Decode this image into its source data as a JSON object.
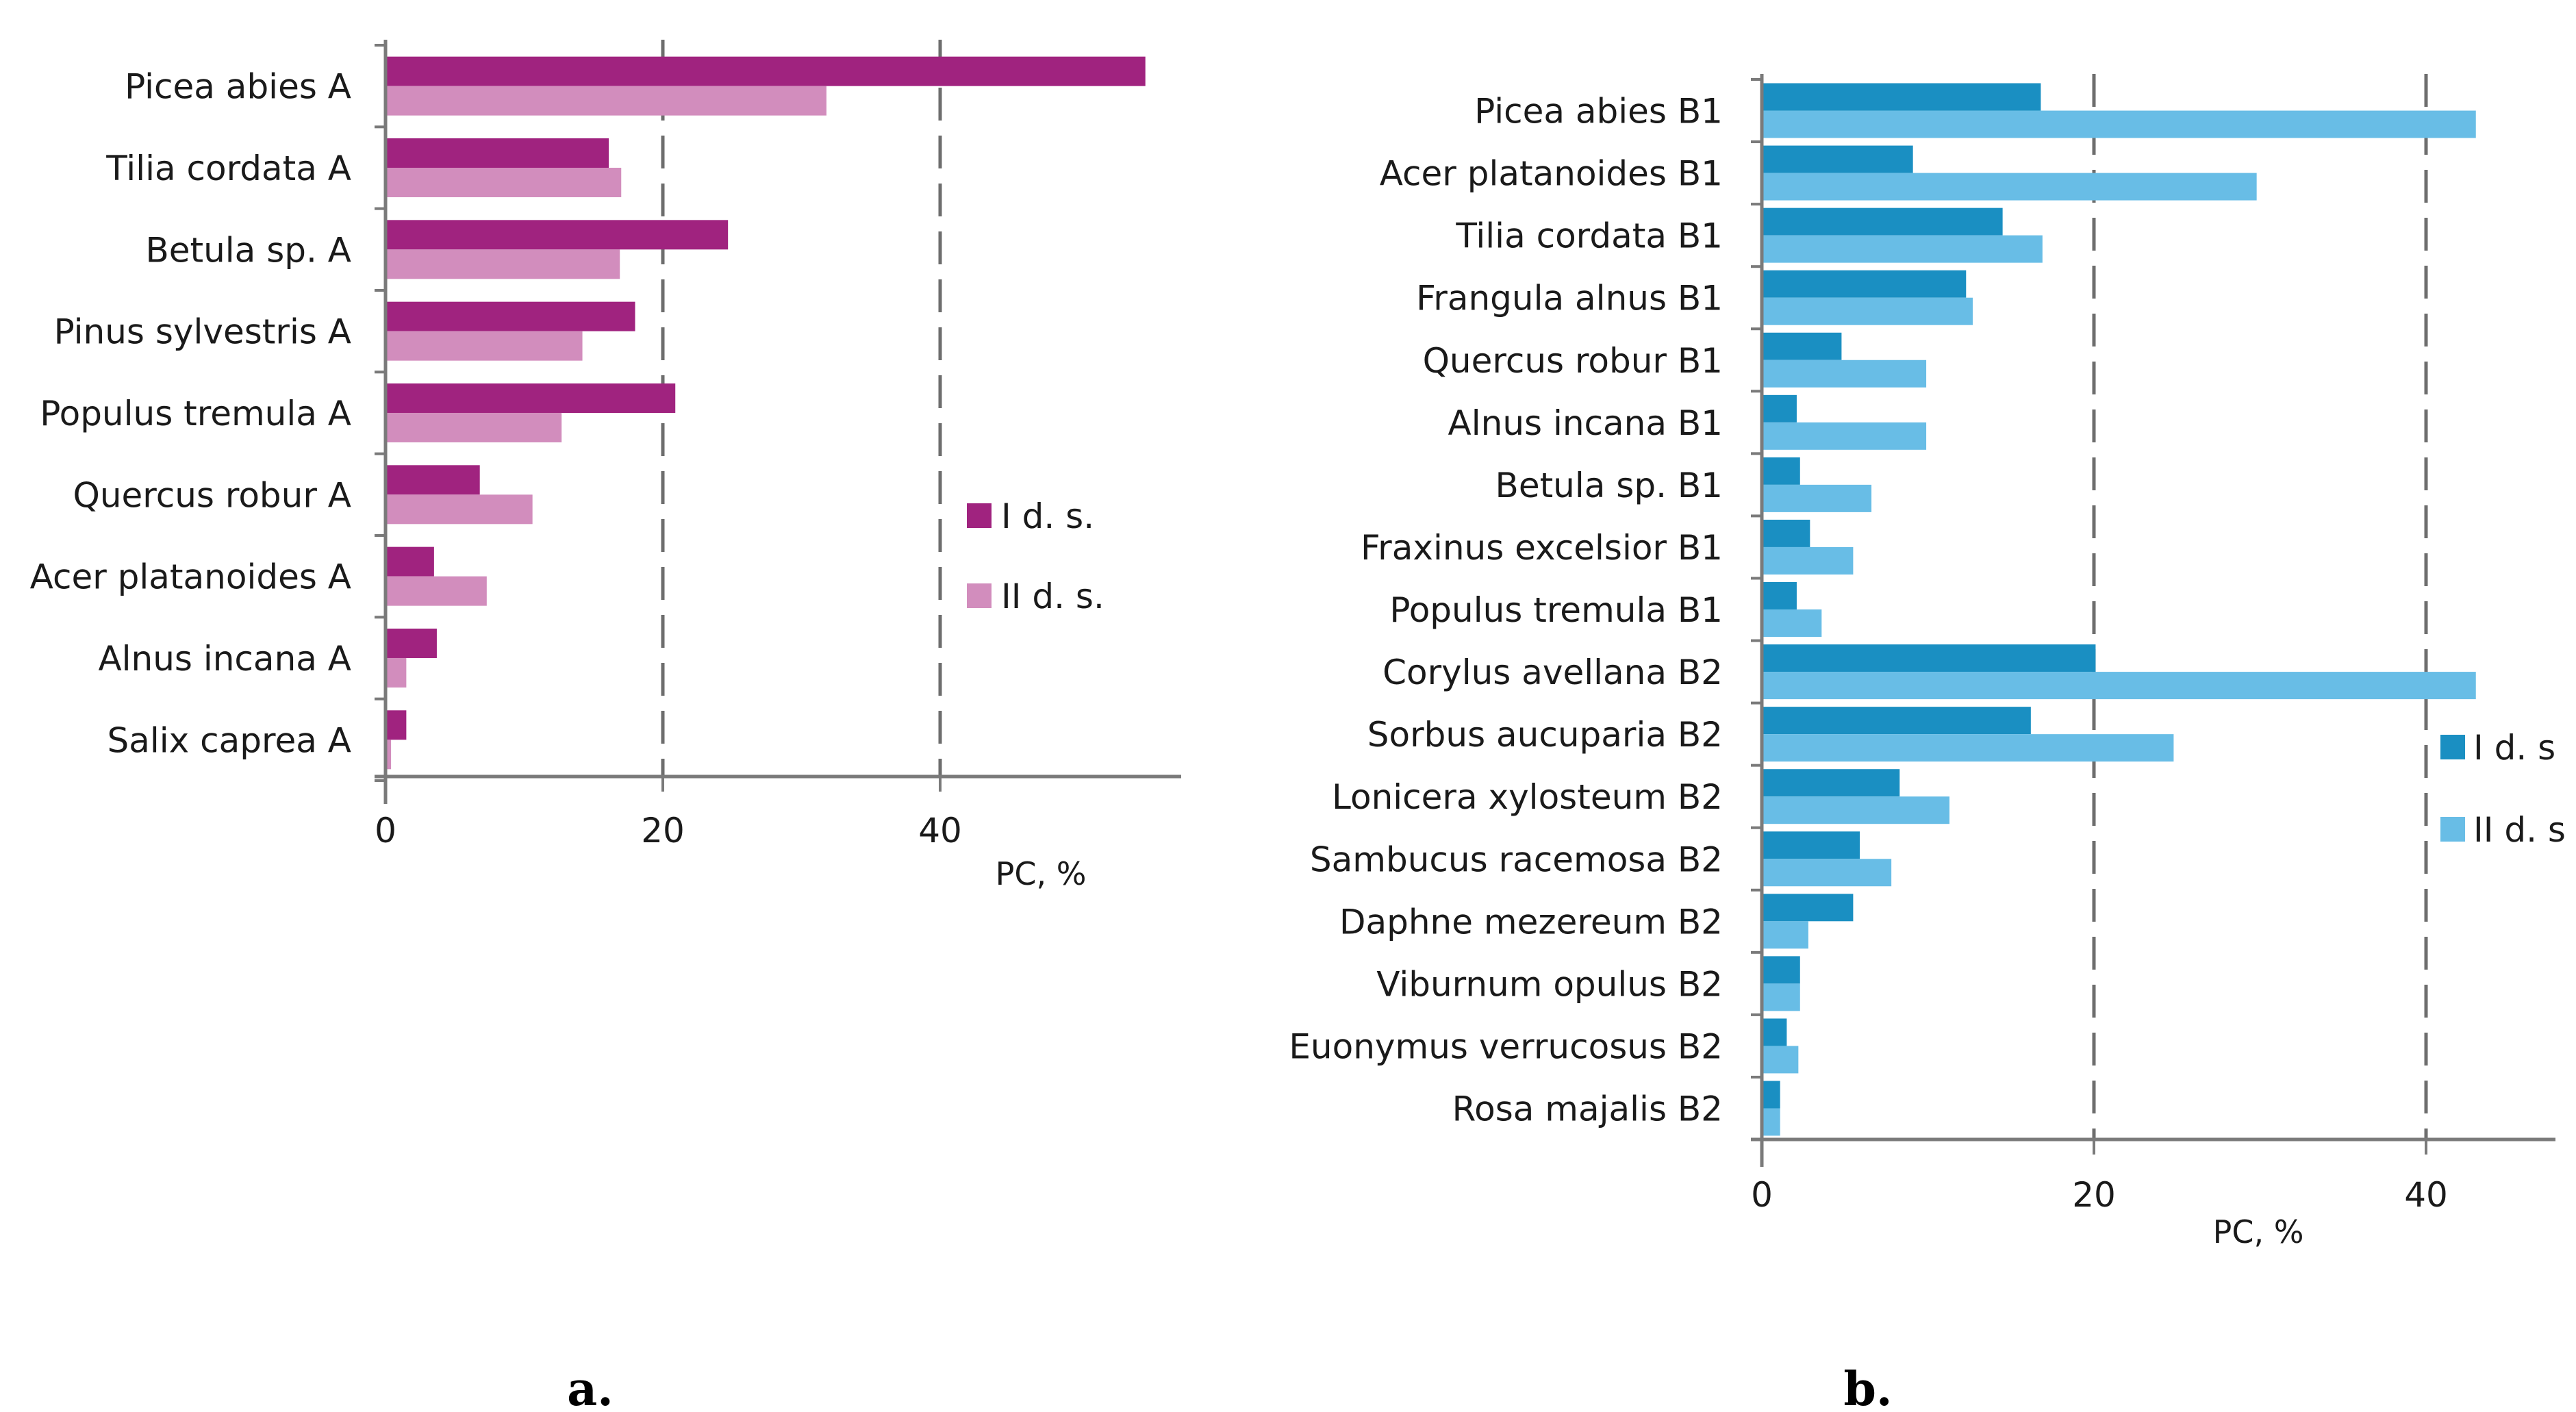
{
  "colors": {
    "a_series1": "#a0237f",
    "a_series2": "#d28dbd",
    "b_series1": "#1a8fc2",
    "b_series2": "#68bde6",
    "axis": "#7a7a7a",
    "grid": "#6d6d6d"
  },
  "chart_data": [
    {
      "type": "bar",
      "orientation": "horizontal",
      "panel_label": "a.",
      "categories": [
        "Picea abies A",
        "Tilia cordata A",
        "Betula sp. A",
        "Pinus sylvestris A",
        "Populus tremula A",
        "Quercus robur A",
        "Acer platanoides A",
        "Alnus incana A",
        "Salix caprea A"
      ],
      "series": [
        {
          "name": "I d. s.",
          "values": [
            54.8,
            16.1,
            24.7,
            18.0,
            20.9,
            6.8,
            3.5,
            3.7,
            1.5
          ]
        },
        {
          "name": "II d. s.",
          "values": [
            31.8,
            17.0,
            16.9,
            14.2,
            12.7,
            10.6,
            7.3,
            1.5,
            0.4
          ]
        }
      ],
      "xticks": [
        0,
        20,
        40
      ],
      "xlim": [
        0,
        57.5
      ],
      "xlabel": "PC, %",
      "grid": "dashed vertical lines at 20 and 40",
      "legend_position": "right"
    },
    {
      "type": "bar",
      "orientation": "horizontal",
      "panel_label": "b.",
      "categories": [
        "Picea abies B1",
        "Acer platanoides B1",
        "Tilia cordata B1",
        "Frangula alnus B1",
        "Quercus robur B1",
        "Alnus incana B1",
        "Betula sp. B1",
        "Fraxinus excelsior B1",
        "Populus tremula B1",
        "Corylus avellana B2",
        "Sorbus aucuparia B2",
        "Lonicera xylosteum B2",
        "Sambucus racemosa B2",
        "Daphne mezereum B2",
        "Viburnum opulus B2",
        "Euonymus verrucosus B2",
        "Rosa majalis B2"
      ],
      "series": [
        {
          "name": "I d. s",
          "values": [
            16.8,
            9.1,
            14.5,
            12.3,
            4.8,
            2.1,
            2.3,
            2.9,
            2.1,
            20.1,
            16.2,
            8.3,
            5.9,
            5.5,
            2.3,
            1.5,
            1.1
          ]
        },
        {
          "name": "II d. s",
          "values": [
            43.0,
            29.8,
            16.9,
            12.7,
            9.9,
            9.9,
            6.6,
            5.5,
            3.6,
            43.0,
            24.8,
            11.3,
            7.8,
            2.8,
            2.3,
            2.2,
            1.1
          ]
        }
      ],
      "xticks": [
        0,
        20,
        40
      ],
      "xlim": [
        0,
        47.6
      ],
      "xlabel": "PC, %",
      "grid": "dashed vertical lines at 20 and 40",
      "legend_position": "right"
    }
  ]
}
